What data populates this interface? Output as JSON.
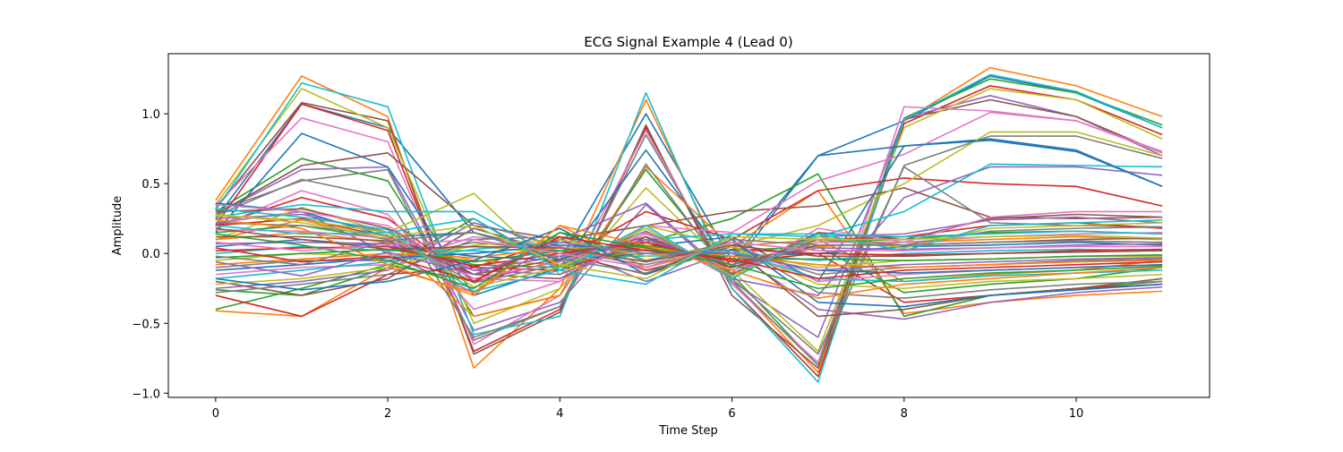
{
  "chart_data": {
    "type": "line",
    "title": "ECG Signal Example 4 (Lead 0)",
    "xlabel": "Time Step",
    "ylabel": "Amplitude",
    "xlim": [
      -0.55,
      11.55
    ],
    "ylim": [
      -1.03,
      1.43
    ],
    "xticks": [
      0,
      2,
      4,
      6,
      8,
      10
    ],
    "xtick_labels": [
      "0",
      "2",
      "4",
      "6",
      "8",
      "10"
    ],
    "yticks": [
      -1.0,
      -0.5,
      0.0,
      0.5,
      1.0
    ],
    "ytick_labels": [
      "−1.0",
      "−0.5",
      "0.0",
      "0.5",
      "1.0"
    ],
    "grid": false,
    "legend": "none",
    "x": [
      0,
      1,
      2,
      3,
      4,
      5,
      6,
      7,
      8,
      9,
      10,
      11
    ],
    "color_cycle": [
      "#1f77b4",
      "#ff7f0e",
      "#2ca02c",
      "#d62728",
      "#9467bd",
      "#8c564b",
      "#e377c2",
      "#7f7f7f",
      "#bcbd22",
      "#17becf"
    ],
    "series": [
      {
        "values": [
          0.25,
          1.07,
          0.9,
          0.15,
          -0.05,
          1.0,
          -0.05,
          0.7,
          0.95,
          1.27,
          1.15,
          0.9
        ]
      },
      {
        "values": [
          0.38,
          1.27,
          0.98,
          -0.82,
          -0.25,
          1.1,
          -0.2,
          -0.85,
          0.95,
          1.33,
          1.2,
          0.98
        ]
      },
      {
        "values": [
          0.3,
          0.68,
          0.52,
          -0.45,
          -0.3,
          0.6,
          -0.15,
          -0.8,
          0.97,
          1.25,
          1.15,
          0.92
        ]
      },
      {
        "values": [
          0.2,
          1.07,
          0.88,
          -0.7,
          -0.4,
          0.9,
          -0.25,
          -0.88,
          0.93,
          1.2,
          1.1,
          0.85
        ]
      },
      {
        "values": [
          0.28,
          0.6,
          0.62,
          -0.55,
          -0.35,
          0.35,
          -0.2,
          -0.6,
          0.97,
          1.13,
          0.98,
          0.7
        ]
      },
      {
        "values": [
          0.32,
          1.08,
          0.95,
          -0.72,
          -0.42,
          0.92,
          -0.3,
          -0.82,
          0.96,
          1.1,
          0.98,
          0.72
        ]
      },
      {
        "values": [
          0.34,
          0.97,
          0.8,
          -0.65,
          -0.3,
          0.88,
          -0.22,
          -0.78,
          1.05,
          1.02,
          0.95,
          0.72
        ]
      },
      {
        "values": [
          0.3,
          0.52,
          0.6,
          -0.62,
          -0.38,
          0.85,
          -0.2,
          -0.8,
          0.63,
          0.84,
          0.84,
          0.68
        ]
      },
      {
        "values": [
          0.35,
          1.18,
          0.9,
          -0.5,
          -0.25,
          0.47,
          -0.12,
          -0.7,
          0.9,
          1.18,
          1.1,
          0.82
        ]
      },
      {
        "values": [
          0.31,
          1.22,
          1.05,
          -0.58,
          -0.45,
          1.15,
          -0.25,
          -0.92,
          0.96,
          1.28,
          1.16,
          0.9
        ]
      },
      {
        "values": [
          0.15,
          0.86,
          0.62,
          -0.3,
          -0.1,
          0.74,
          -0.1,
          0.7,
          0.77,
          0.82,
          0.74,
          0.48
        ]
      },
      {
        "values": [
          0.1,
          0.24,
          0.1,
          -0.45,
          -0.3,
          0.62,
          0.05,
          0.45,
          -0.43,
          -0.35,
          -0.3,
          -0.27
        ]
      },
      {
        "values": [
          -0.26,
          -0.3,
          -0.1,
          0.25,
          -0.1,
          0.08,
          0.25,
          0.57,
          -0.45,
          -0.3,
          -0.25,
          -0.2
        ]
      },
      {
        "values": [
          0.2,
          0.4,
          0.25,
          -0.2,
          -0.05,
          0.3,
          0.1,
          0.45,
          0.54,
          0.5,
          0.48,
          0.34
        ]
      },
      {
        "values": [
          0.22,
          0.3,
          0.0,
          -0.28,
          0.1,
          0.36,
          -0.18,
          -0.3,
          0.4,
          0.62,
          0.62,
          0.56
        ]
      },
      {
        "values": [
          0.28,
          0.63,
          0.72,
          0.2,
          0.1,
          0.2,
          0.3,
          0.34,
          0.47,
          0.26,
          0.25,
          0.26
        ]
      },
      {
        "values": [
          0.18,
          0.45,
          0.28,
          -0.4,
          -0.2,
          0.2,
          0.15,
          0.52,
          0.71,
          1.01,
          0.95,
          0.73
        ]
      },
      {
        "values": [
          0.27,
          0.53,
          0.4,
          -0.6,
          -0.38,
          0.64,
          -0.18,
          -0.72,
          0.62,
          0.22,
          0.2,
          0.19
        ]
      },
      {
        "values": [
          0.1,
          0.33,
          0.15,
          0.43,
          -0.15,
          0.2,
          0.05,
          0.2,
          0.5,
          0.87,
          0.87,
          0.7
        ]
      },
      {
        "values": [
          0.26,
          0.35,
          0.3,
          0.3,
          -0.05,
          0.1,
          0.14,
          0.12,
          0.3,
          0.64,
          0.63,
          0.62
        ]
      },
      {
        "values": [
          0.36,
          0.3,
          0.12,
          0.15,
          0.0,
          0.05,
          0.12,
          -0.2,
          0.77,
          0.81,
          0.73,
          0.48
        ]
      },
      {
        "values": [
          -0.41,
          -0.45,
          -0.1,
          -0.28,
          0.2,
          -0.1,
          0.05,
          0.1,
          -0.2,
          -0.15,
          -0.12,
          -0.05
        ]
      },
      {
        "values": [
          -0.4,
          -0.25,
          -0.08,
          -0.2,
          0.15,
          -0.05,
          0.02,
          0.05,
          -0.28,
          -0.22,
          -0.18,
          -0.1
        ]
      },
      {
        "values": [
          -0.3,
          -0.45,
          -0.15,
          -0.1,
          0.1,
          -0.12,
          0.03,
          0.0,
          -0.35,
          -0.3,
          -0.25,
          -0.22
        ]
      },
      {
        "values": [
          -0.25,
          -0.2,
          -0.12,
          0.22,
          0.05,
          -0.2,
          0.02,
          -0.4,
          -0.47,
          -0.35,
          -0.28,
          -0.24
        ]
      },
      {
        "values": [
          -0.2,
          -0.3,
          -0.18,
          0.18,
          0.0,
          -0.15,
          0.05,
          -0.45,
          -0.4,
          -0.3,
          -0.25,
          -0.18
        ]
      },
      {
        "values": [
          -0.15,
          -0.1,
          -0.08,
          0.12,
          0.05,
          -0.1,
          0.08,
          -0.2,
          -0.15,
          -0.12,
          -0.1,
          -0.08
        ]
      },
      {
        "values": [
          -0.1,
          -0.05,
          -0.05,
          0.08,
          0.02,
          -0.08,
          0.05,
          -0.15,
          -0.1,
          -0.08,
          -0.05,
          -0.04
        ]
      },
      {
        "values": [
          -0.05,
          0.0,
          -0.02,
          0.05,
          0.0,
          -0.05,
          0.02,
          -0.1,
          -0.05,
          -0.04,
          -0.02,
          -0.02
        ]
      },
      {
        "values": [
          0.0,
          0.05,
          0.02,
          0.02,
          -0.02,
          -0.02,
          0.0,
          -0.05,
          0.0,
          0.02,
          0.03,
          0.02
        ]
      },
      {
        "values": [
          0.05,
          0.1,
          0.05,
          -0.02,
          -0.05,
          0.0,
          -0.02,
          0.0,
          0.05,
          0.06,
          0.08,
          0.06
        ]
      },
      {
        "values": [
          0.1,
          0.15,
          0.08,
          -0.05,
          -0.08,
          0.03,
          -0.05,
          0.05,
          0.08,
          0.1,
          0.12,
          0.1
        ]
      },
      {
        "values": [
          0.15,
          0.2,
          0.1,
          -0.08,
          -0.1,
          0.05,
          -0.08,
          0.08,
          0.1,
          0.15,
          0.16,
          0.14
        ]
      },
      {
        "values": [
          0.2,
          0.25,
          0.12,
          -0.1,
          -0.12,
          0.08,
          -0.1,
          0.1,
          0.12,
          0.2,
          0.22,
          0.18
        ]
      },
      {
        "values": [
          0.25,
          0.28,
          0.15,
          -0.12,
          -0.15,
          0.1,
          -0.12,
          0.12,
          0.14,
          0.24,
          0.26,
          0.22
        ]
      },
      {
        "values": [
          0.3,
          0.32,
          0.18,
          -0.15,
          -0.18,
          0.12,
          -0.15,
          0.15,
          0.1,
          0.25,
          0.28,
          0.26
        ]
      },
      {
        "values": [
          0.35,
          0.3,
          0.2,
          -0.18,
          -0.2,
          0.15,
          -0.18,
          0.18,
          0.08,
          0.26,
          0.3,
          0.3
        ]
      },
      {
        "values": [
          -0.28,
          -0.22,
          -0.15,
          0.1,
          0.12,
          -0.05,
          0.08,
          -0.28,
          -0.32,
          -0.26,
          -0.22,
          -0.2
        ]
      },
      {
        "values": [
          -0.22,
          -0.18,
          -0.1,
          0.06,
          0.1,
          -0.02,
          0.05,
          -0.22,
          -0.25,
          -0.2,
          -0.18,
          -0.15
        ]
      },
      {
        "values": [
          -0.18,
          -0.12,
          -0.06,
          0.03,
          0.08,
          0.0,
          0.02,
          -0.18,
          -0.2,
          -0.16,
          -0.14,
          -0.12
        ]
      },
      {
        "values": [
          -0.12,
          -0.08,
          -0.03,
          0.0,
          0.06,
          0.02,
          0.0,
          -0.12,
          -0.14,
          -0.12,
          -0.1,
          -0.08
        ]
      },
      {
        "values": [
          -0.08,
          -0.04,
          0.0,
          -0.03,
          0.04,
          0.04,
          -0.02,
          -0.08,
          -0.1,
          -0.08,
          -0.06,
          -0.05
        ]
      },
      {
        "values": [
          -0.03,
          0.0,
          0.03,
          -0.06,
          0.02,
          0.06,
          -0.04,
          -0.04,
          -0.05,
          -0.04,
          -0.02,
          -0.01
        ]
      },
      {
        "values": [
          0.02,
          0.04,
          0.05,
          -0.09,
          0.0,
          0.08,
          -0.06,
          0.0,
          -0.01,
          0.0,
          0.02,
          0.03
        ]
      },
      {
        "values": [
          0.07,
          0.08,
          0.07,
          -0.12,
          -0.02,
          0.1,
          -0.08,
          0.04,
          0.03,
          0.04,
          0.06,
          0.07
        ]
      },
      {
        "values": [
          0.12,
          0.12,
          0.09,
          -0.15,
          -0.04,
          0.12,
          -0.1,
          0.06,
          0.06,
          0.08,
          0.1,
          0.11
        ]
      },
      {
        "values": [
          0.17,
          0.16,
          0.11,
          -0.18,
          -0.06,
          0.14,
          -0.12,
          0.08,
          0.08,
          0.12,
          0.14,
          0.15
        ]
      },
      {
        "values": [
          0.22,
          0.2,
          0.13,
          -0.21,
          -0.08,
          0.16,
          -0.14,
          0.1,
          0.06,
          0.16,
          0.18,
          0.19
        ]
      },
      {
        "values": [
          0.27,
          0.24,
          0.15,
          -0.24,
          -0.1,
          0.18,
          -0.16,
          0.12,
          0.04,
          0.18,
          0.2,
          0.22
        ]
      },
      {
        "values": [
          0.32,
          0.26,
          0.17,
          -0.27,
          -0.12,
          0.2,
          -0.18,
          0.14,
          0.02,
          0.2,
          0.22,
          0.24
        ]
      },
      {
        "values": [
          -0.18,
          -0.26,
          -0.2,
          -0.05,
          0.18,
          -0.15,
          0.1,
          -0.35,
          -0.38,
          -0.3,
          -0.26,
          -0.22
        ]
      },
      {
        "values": [
          0.24,
          0.18,
          -0.08,
          -0.3,
          0.2,
          0.06,
          -0.12,
          -0.32,
          -0.22,
          -0.18,
          -0.14,
          -0.1
        ]
      },
      {
        "values": [
          0.14,
          0.06,
          -0.05,
          -0.25,
          0.15,
          0.04,
          -0.08,
          -0.25,
          -0.18,
          -0.14,
          -0.12,
          -0.09
        ]
      },
      {
        "values": [
          0.04,
          -0.06,
          -0.02,
          -0.2,
          0.12,
          0.02,
          -0.04,
          -0.18,
          -0.12,
          -0.1,
          -0.08,
          -0.06
        ]
      },
      {
        "values": [
          -0.06,
          -0.16,
          0.01,
          -0.15,
          0.08,
          0.0,
          0.0,
          -0.12,
          -0.08,
          -0.06,
          -0.04,
          -0.03
        ]
      },
      {
        "values": [
          0.18,
          0.1,
          0.03,
          0.05,
          0.04,
          -0.06,
          0.06,
          -0.02,
          -0.02,
          0.0,
          0.01,
          0.02
        ]
      },
      {
        "values": [
          0.08,
          0.02,
          0.06,
          0.1,
          0.0,
          -0.1,
          0.08,
          0.02,
          0.02,
          0.04,
          0.05,
          0.05
        ]
      },
      {
        "values": [
          -0.02,
          -0.08,
          0.09,
          0.15,
          -0.04,
          -0.14,
          0.1,
          0.06,
          0.06,
          0.08,
          0.09,
          0.08
        ]
      },
      {
        "values": [
          0.28,
          0.22,
          0.12,
          0.2,
          -0.08,
          -0.18,
          0.12,
          0.1,
          0.1,
          0.12,
          0.13,
          0.11
        ]
      },
      {
        "values": [
          0.2,
          0.14,
          0.15,
          0.25,
          -0.12,
          -0.22,
          0.14,
          0.14,
          0.12,
          0.14,
          0.16,
          0.14
        ]
      }
    ]
  }
}
